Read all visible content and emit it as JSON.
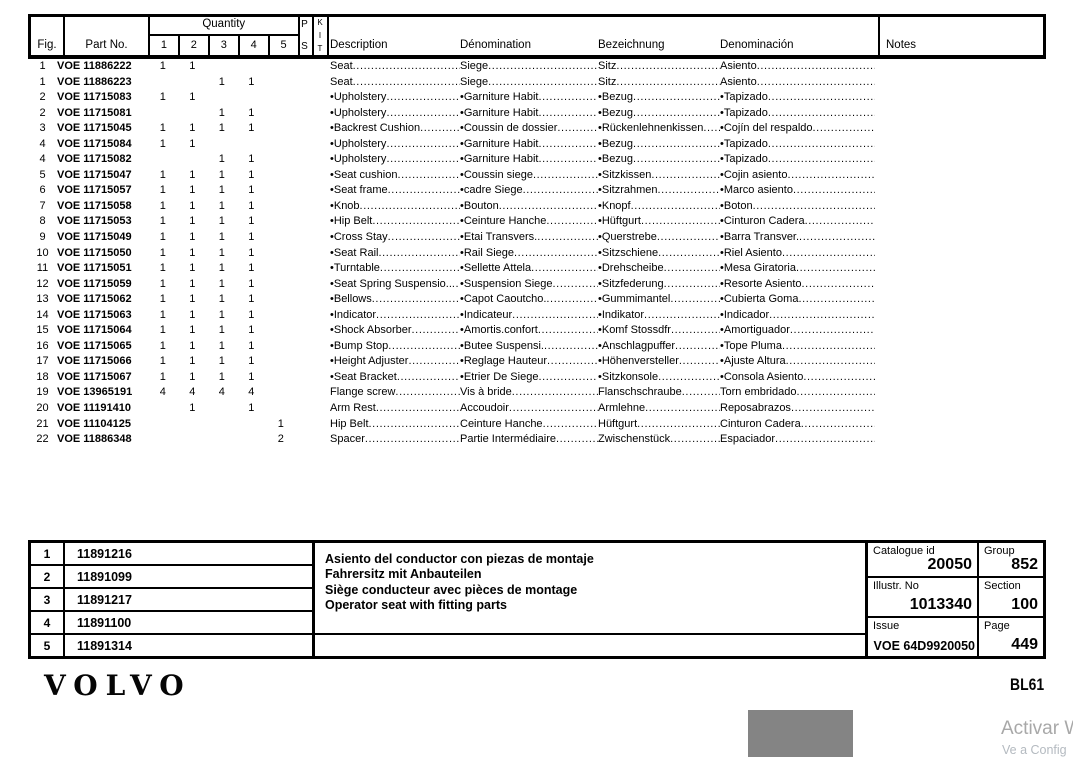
{
  "header": {
    "fig": "Fig.",
    "part_no": "Part No.",
    "quantity": "Quantity",
    "qty_cols": [
      "1",
      "2",
      "3",
      "4",
      "5"
    ],
    "ps": [
      "P",
      "S"
    ],
    "kit": [
      "K",
      "I",
      "T"
    ],
    "lang_cols": [
      "Description",
      "Dénomination",
      "Bezeichnung",
      "Denominación"
    ],
    "notes": "Notes"
  },
  "parts": [
    {
      "fig": "1",
      "part": "VOE 11886222",
      "qty": [
        "1",
        "1",
        "",
        "",
        ""
      ],
      "en": "Seat",
      "fr": "Siege",
      "de": "Sitz",
      "es": "Asiento"
    },
    {
      "fig": "1",
      "part": "VOE 11886223",
      "qty": [
        "",
        "",
        "1",
        "1",
        ""
      ],
      "en": "Seat",
      "fr": "Siege",
      "de": "Sitz",
      "es": "Asiento"
    },
    {
      "fig": "2",
      "part": "VOE 11715083",
      "qty": [
        "1",
        "1",
        "",
        "",
        ""
      ],
      "en": "•Upholstery",
      "fr": "•Garniture Habit",
      "de": "•Bezug",
      "es": "•Tapizado"
    },
    {
      "fig": "2",
      "part": "VOE 11715081",
      "qty": [
        "",
        "",
        "1",
        "1",
        ""
      ],
      "en": "•Upholstery",
      "fr": "•Garniture Habit",
      "de": "•Bezug",
      "es": "•Tapizado"
    },
    {
      "fig": "3",
      "part": "VOE 11715045",
      "qty": [
        "1",
        "1",
        "1",
        "1",
        ""
      ],
      "en": "•Backrest Cushion",
      "fr": "•Coussin de dossier",
      "de": "•Rückenlehnenkissen",
      "es": "•Cojín del respaldo"
    },
    {
      "fig": "4",
      "part": "VOE 11715084",
      "qty": [
        "1",
        "1",
        "",
        "",
        ""
      ],
      "en": "•Upholstery",
      "fr": "•Garniture Habit",
      "de": "•Bezug",
      "es": "•Tapizado"
    },
    {
      "fig": "4",
      "part": "VOE 11715082",
      "qty": [
        "",
        "",
        "1",
        "1",
        ""
      ],
      "en": "•Upholstery",
      "fr": "•Garniture Habit",
      "de": "•Bezug",
      "es": "•Tapizado"
    },
    {
      "fig": "5",
      "part": "VOE 11715047",
      "qty": [
        "1",
        "1",
        "1",
        "1",
        ""
      ],
      "en": "•Seat cushion",
      "fr": "•Coussin siege",
      "de": "•Sitzkissen",
      "es": "•Cojin asiento"
    },
    {
      "fig": "6",
      "part": "VOE 11715057",
      "qty": [
        "1",
        "1",
        "1",
        "1",
        ""
      ],
      "en": "•Seat frame",
      "fr": "•cadre Siege",
      "de": "•Sitzrahmen",
      "es": "•Marco asiento"
    },
    {
      "fig": "7",
      "part": "VOE 11715058",
      "qty": [
        "1",
        "1",
        "1",
        "1",
        ""
      ],
      "en": "•Knob",
      "fr": "•Bouton",
      "de": "•Knopf",
      "es": "•Boton"
    },
    {
      "fig": "8",
      "part": "VOE 11715053",
      "qty": [
        "1",
        "1",
        "1",
        "1",
        ""
      ],
      "en": "•Hip Belt",
      "fr": "•Ceinture Hanche",
      "de": "•Hüftgurt",
      "es": "•Cinturon Cadera"
    },
    {
      "fig": "9",
      "part": "VOE 11715049",
      "qty": [
        "1",
        "1",
        "1",
        "1",
        ""
      ],
      "en": "•Cross Stay",
      "fr": "•Etai Transvers.",
      "de": "•Querstrebe",
      "es": "•Barra Transver."
    },
    {
      "fig": "10",
      "part": "VOE 11715050",
      "qty": [
        "1",
        "1",
        "1",
        "1",
        ""
      ],
      "en": "•Seat Rail",
      "fr": "•Rail Siege",
      "de": "•Sitzschiene",
      "es": "•Riel Asiento"
    },
    {
      "fig": "11",
      "part": "VOE 11715051",
      "qty": [
        "1",
        "1",
        "1",
        "1",
        ""
      ],
      "en": "•Turntable",
      "fr": "•Sellette Attela",
      "de": "•Drehscheibe",
      "es": "•Mesa Giratoria"
    },
    {
      "fig": "12",
      "part": "VOE 11715059",
      "qty": [
        "1",
        "1",
        "1",
        "1",
        ""
      ],
      "en": "•Seat Spring Suspensio..",
      "fr": "•Suspension Siege",
      "de": "•Sitzfederung",
      "es": "•Resorte Asiento"
    },
    {
      "fig": "13",
      "part": "VOE 11715062",
      "qty": [
        "1",
        "1",
        "1",
        "1",
        ""
      ],
      "en": "•Bellows",
      "fr": "•Capot Caoutcho.",
      "de": "•Gummimantel",
      "es": "•Cubierta Goma"
    },
    {
      "fig": "14",
      "part": "VOE 11715063",
      "qty": [
        "1",
        "1",
        "1",
        "1",
        ""
      ],
      "en": "•Indicator",
      "fr": "•Indicateur",
      "de": "•Indikator",
      "es": "•Indicador"
    },
    {
      "fig": "15",
      "part": "VOE 11715064",
      "qty": [
        "1",
        "1",
        "1",
        "1",
        ""
      ],
      "en": "•Shock Absorber",
      "fr": "•Amortis.confort",
      "de": "•Komf Stossdfr",
      "es": "•Amortiguador"
    },
    {
      "fig": "16",
      "part": "VOE 11715065",
      "qty": [
        "1",
        "1",
        "1",
        "1",
        ""
      ],
      "en": "•Bump Stop",
      "fr": "•Butee Suspensi.",
      "de": "•Anschlagpuffer",
      "es": "•Tope Pluma"
    },
    {
      "fig": "17",
      "part": "VOE 11715066",
      "qty": [
        "1",
        "1",
        "1",
        "1",
        ""
      ],
      "en": "•Height Adjuster",
      "fr": "•Reglage Hauteur",
      "de": "•Höhenversteller",
      "es": "•Ajuste Altura"
    },
    {
      "fig": "18",
      "part": "VOE 11715067",
      "qty": [
        "1",
        "1",
        "1",
        "1",
        ""
      ],
      "en": "•Seat Bracket",
      "fr": "•Etrier De Siege",
      "de": "•Sitzkonsole",
      "es": "•Consola Asiento"
    },
    {
      "fig": "19",
      "part": "VOE 13965191",
      "qty": [
        "4",
        "4",
        "4",
        "4",
        ""
      ],
      "en": "Flange screw",
      "fr": "Vis à bride",
      "de": "Flanschschraube",
      "es": "Torn embridado"
    },
    {
      "fig": "20",
      "part": "VOE 11191410",
      "qty": [
        "",
        "1",
        "",
        "1",
        ""
      ],
      "en": "Arm Rest",
      "fr": "Accoudoir",
      "de": "Armlehne",
      "es": "Reposabrazos"
    },
    {
      "fig": "21",
      "part": "VOE 11104125",
      "qty": [
        "",
        "",
        "",
        "",
        "1"
      ],
      "en": "Hip Belt",
      "fr": "Ceinture Hanche",
      "de": "Hüftgurt",
      "es": "Cinturon Cadera"
    },
    {
      "fig": "22",
      "part": "VOE 11886348",
      "qty": [
        "",
        "",
        "",
        "",
        "2"
      ],
      "en": "Spacer",
      "fr": "Partie Intermédiaire",
      "de": "Zwischenstück",
      "es": "Espaciador"
    }
  ],
  "footer_table": {
    "variants": [
      {
        "num": "1",
        "part": "11891216"
      },
      {
        "num": "2",
        "part": "11891099"
      },
      {
        "num": "3",
        "part": "11891217"
      },
      {
        "num": "4",
        "part": "11891100"
      },
      {
        "num": "5",
        "part": "11891314"
      }
    ],
    "titles": [
      "Asiento del conductor con piezas de montaje",
      "Fahrersitz mit Anbauteilen",
      "Siège conducteur avec pièces de montage",
      "Operator seat with fitting parts"
    ],
    "info": {
      "catalogue_id_label": "Catalogue id",
      "catalogue_id": "20050",
      "group_label": "Group",
      "group": "852",
      "illustr_no_label": "Illustr. No",
      "illustr_no": "1013340",
      "section_label": "Section",
      "section": "100",
      "issue_label": "Issue",
      "issue": "VOE 64D9920050",
      "page_label": "Page",
      "page": "449"
    }
  },
  "branding": {
    "logo": "VOLVO",
    "model": "BL61"
  },
  "overlay": {
    "watermark_line1": "Activar W",
    "watermark_line2": "Ve a Config",
    "watermark_color1": "#a8a8a8",
    "watermark_color2": "#b4bac0",
    "gray_box_color": "#848484"
  }
}
